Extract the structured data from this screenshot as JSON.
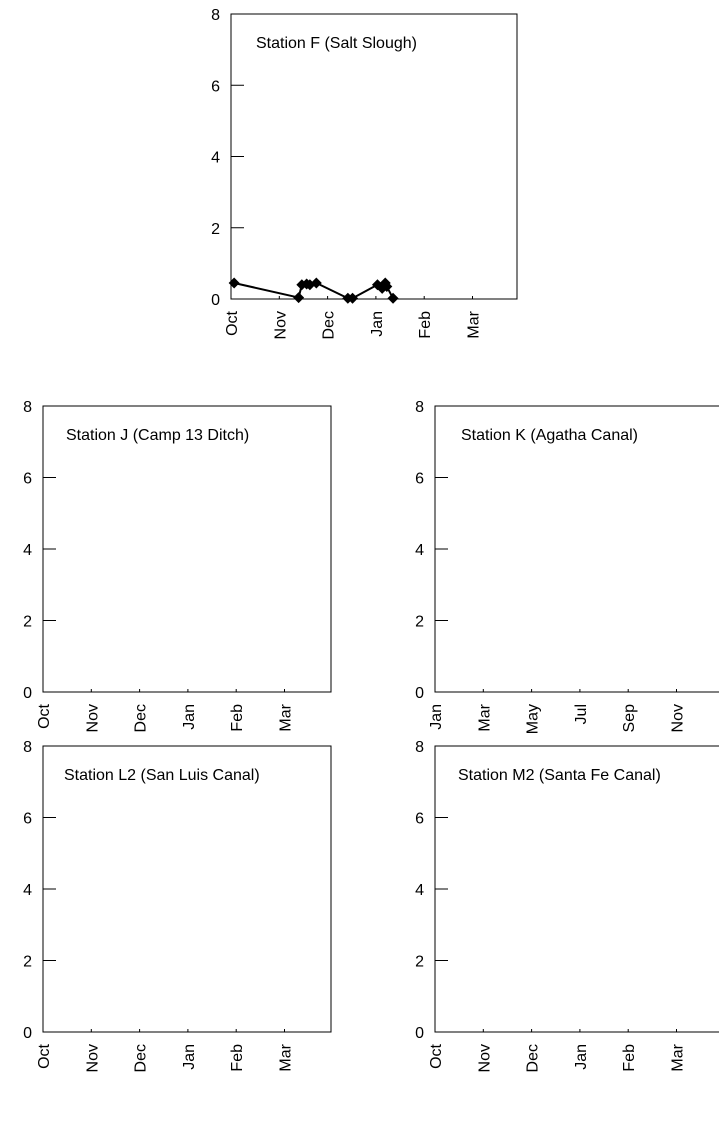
{
  "chart_data": [
    {
      "type": "line",
      "title": "Station F (Salt Slough)",
      "xlabel": "",
      "ylabel": "",
      "ylim": [
        0,
        8
      ],
      "yticks": [
        "0",
        "2",
        "4",
        "6",
        "8"
      ],
      "xticks": [
        "Oct",
        "Nov",
        "Dec",
        "Jan",
        "Feb",
        "Mar"
      ],
      "grid": false,
      "series": [
        {
          "color": "#000000",
          "marker": "diamond",
          "points": [
            [
              "Oct 3",
              0.45
            ],
            [
              "Nov 13",
              0.04
            ],
            [
              "Nov 15",
              0.4
            ],
            [
              "Nov 18",
              0.42
            ],
            [
              "Nov 20",
              0.4
            ],
            [
              "Nov 24",
              0.45
            ],
            [
              "Dec 14",
              0.02
            ],
            [
              "Dec 17",
              0.02
            ],
            [
              "Jan 2",
              0.4
            ],
            [
              "Jan 5",
              0.3
            ],
            [
              "Jan 7",
              0.45
            ],
            [
              "Jan 8",
              0.35
            ],
            [
              "Jan 12",
              0.02
            ]
          ]
        }
      ]
    },
    {
      "type": "line",
      "title": "Station J (Camp 13 Ditch)",
      "ylim": [
        0,
        8
      ],
      "yticks": [
        "0",
        "2",
        "4",
        "6",
        "8"
      ],
      "xticks": [
        "Oct",
        "Nov",
        "Dec",
        "Jan",
        "Feb",
        "Mar"
      ],
      "grid": false,
      "series": []
    },
    {
      "type": "line",
      "title": "Station K (Agatha Canal)",
      "ylim": [
        0,
        8
      ],
      "yticks": [
        "0",
        "2",
        "4",
        "6",
        "8"
      ],
      "xticks": [
        "Jan",
        "Mar",
        "May",
        "Jul",
        "Sep",
        "Nov"
      ],
      "grid": false,
      "series": []
    },
    {
      "type": "line",
      "title": "Station L2 (San Luis Canal)",
      "ylim": [
        0,
        8
      ],
      "yticks": [
        "0",
        "2",
        "4",
        "6",
        "8"
      ],
      "xticks": [
        "Oct",
        "Nov",
        "Dec",
        "Jan",
        "Feb",
        "Mar"
      ],
      "grid": false,
      "series": []
    },
    {
      "type": "line",
      "title": "Station M2 (Santa Fe Canal)",
      "ylim": [
        0,
        8
      ],
      "yticks": [
        "0",
        "2",
        "4",
        "6",
        "8"
      ],
      "xticks": [
        "Oct",
        "Nov",
        "Dec",
        "Jan",
        "Feb",
        "Mar"
      ],
      "grid": false,
      "series": []
    }
  ]
}
